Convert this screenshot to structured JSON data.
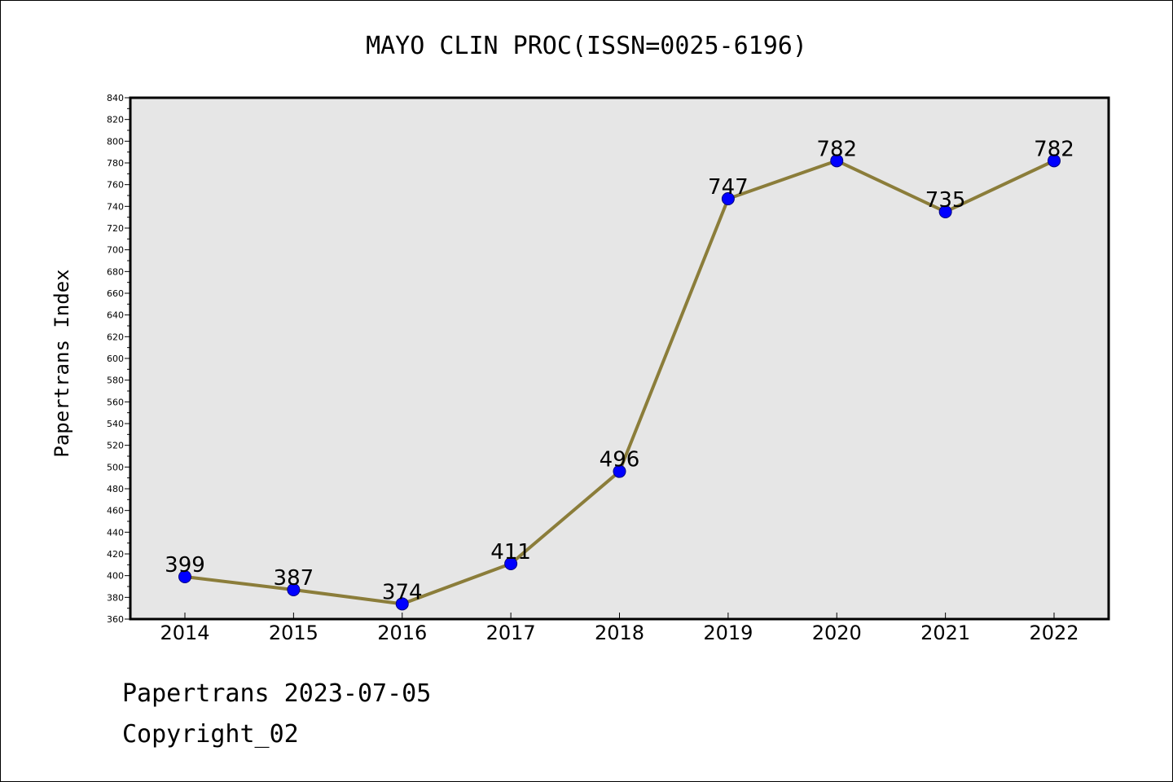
{
  "footer": {
    "line1": "Papertrans 2023-07-05",
    "line2": "Copyright_02"
  },
  "colors": {
    "plot_background": "#e6e6e6",
    "line": "#8b7d3a",
    "marker_fill": "#0000ff",
    "marker_edge": "#000080",
    "text": "#000000"
  },
  "chart_data": {
    "type": "line",
    "title": "MAYO CLIN PROC(ISSN=0025-6196)",
    "xlabel": "",
    "ylabel": "Papertrans Index",
    "x": [
      "2014",
      "2015",
      "2016",
      "2017",
      "2018",
      "2019",
      "2020",
      "2021",
      "2022"
    ],
    "series": [
      {
        "values": [
          399,
          387,
          374,
          411,
          496,
          747,
          782,
          735,
          782
        ],
        "data_labels": [
          "399",
          "387",
          "374",
          "411",
          "496",
          "747",
          "782",
          "735",
          "782"
        ]
      }
    ],
    "ylim": [
      360,
      840
    ],
    "yticks": [
      360,
      380,
      400,
      420,
      440,
      460,
      480,
      500,
      520,
      540,
      560,
      580,
      600,
      620,
      640,
      660,
      680,
      700,
      720,
      740,
      760,
      780,
      800,
      820,
      840
    ],
    "grid": false,
    "legend": "none"
  }
}
